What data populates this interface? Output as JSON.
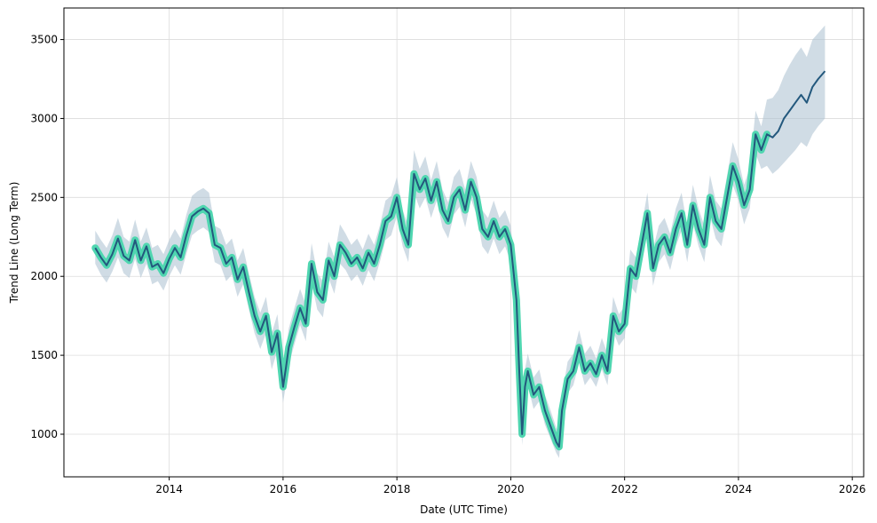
{
  "chart_data": {
    "type": "line",
    "title": "",
    "xlabel": "Date (UTC Time)",
    "ylabel": "Trend Line (Long Term)",
    "xlim": [
      2012.15,
      2026.2
    ],
    "ylim": [
      730,
      3700
    ],
    "grid": true,
    "legend": "none",
    "x_ticks": [
      2014,
      2016,
      2018,
      2020,
      2022,
      2024,
      2026
    ],
    "x_tick_labels": [
      "2014",
      "2016",
      "2018",
      "2020",
      "2022",
      "2024",
      "2026"
    ],
    "y_ticks": [
      1000,
      1500,
      2000,
      2500,
      3000,
      3500
    ],
    "y_tick_labels": [
      "1000",
      "1500",
      "2000",
      "2500",
      "3000",
      "3500"
    ],
    "colors": {
      "line": "#23587d",
      "highlight": "#4fd6b0",
      "band": "#a9bfd0",
      "grid": "#dcdcdc",
      "axis": "#000000"
    },
    "highlight_end": 2024.5,
    "series": [
      {
        "name": "",
        "x": [
          2012.7,
          2012.8,
          2012.9,
          2013.0,
          2013.1,
          2013.2,
          2013.3,
          2013.4,
          2013.5,
          2013.6,
          2013.7,
          2013.8,
          2013.9,
          2014.0,
          2014.1,
          2014.2,
          2014.3,
          2014.4,
          2014.5,
          2014.6,
          2014.7,
          2014.8,
          2014.9,
          2015.0,
          2015.1,
          2015.2,
          2015.3,
          2015.4,
          2015.5,
          2015.6,
          2015.7,
          2015.8,
          2015.9,
          2016.0,
          2016.05,
          2016.1,
          2016.2,
          2016.3,
          2016.4,
          2016.5,
          2016.6,
          2016.7,
          2016.8,
          2016.9,
          2017.0,
          2017.1,
          2017.2,
          2017.3,
          2017.4,
          2017.5,
          2017.6,
          2017.7,
          2017.8,
          2017.9,
          2018.0,
          2018.1,
          2018.2,
          2018.3,
          2018.4,
          2018.5,
          2018.6,
          2018.7,
          2018.8,
          2018.9,
          2019.0,
          2019.1,
          2019.2,
          2019.3,
          2019.4,
          2019.5,
          2019.6,
          2019.7,
          2019.8,
          2019.9,
          2020.0,
          2020.1,
          2020.15,
          2020.2,
          2020.25,
          2020.3,
          2020.4,
          2020.5,
          2020.6,
          2020.7,
          2020.8,
          2020.85,
          2020.9,
          2021.0,
          2021.1,
          2021.2,
          2021.3,
          2021.4,
          2021.5,
          2021.6,
          2021.7,
          2021.8,
          2021.9,
          2022.0,
          2022.1,
          2022.2,
          2022.3,
          2022.4,
          2022.5,
          2022.6,
          2022.7,
          2022.8,
          2022.9,
          2023.0,
          2023.1,
          2023.2,
          2023.3,
          2023.4,
          2023.5,
          2023.6,
          2023.7,
          2023.8,
          2023.9,
          2024.0,
          2024.1,
          2024.2,
          2024.3,
          2024.4,
          2024.5,
          2024.6,
          2024.7,
          2024.8,
          2024.9,
          2025.0,
          2025.1,
          2025.2,
          2025.3,
          2025.4,
          2025.52
        ],
        "values": [
          2180,
          2120,
          2070,
          2140,
          2240,
          2130,
          2100,
          2230,
          2100,
          2190,
          2060,
          2080,
          2020,
          2110,
          2180,
          2120,
          2260,
          2380,
          2410,
          2430,
          2400,
          2200,
          2180,
          2080,
          2120,
          1980,
          2060,
          1900,
          1750,
          1650,
          1750,
          1520,
          1640,
          1300,
          1420,
          1550,
          1680,
          1800,
          1700,
          2080,
          1900,
          1850,
          2100,
          2000,
          2200,
          2150,
          2080,
          2120,
          2050,
          2150,
          2080,
          2200,
          2350,
          2380,
          2500,
          2300,
          2200,
          2650,
          2550,
          2620,
          2480,
          2600,
          2420,
          2350,
          2500,
          2550,
          2420,
          2600,
          2500,
          2300,
          2250,
          2350,
          2250,
          2300,
          2200,
          1850,
          1400,
          1000,
          1300,
          1400,
          1250,
          1300,
          1150,
          1050,
          950,
          920,
          1150,
          1350,
          1400,
          1550,
          1400,
          1450,
          1380,
          1500,
          1400,
          1750,
          1650,
          1700,
          2050,
          2000,
          2200,
          2400,
          2050,
          2200,
          2250,
          2150,
          2300,
          2400,
          2200,
          2450,
          2300,
          2200,
          2500,
          2350,
          2300,
          2500,
          2700,
          2600,
          2450,
          2550,
          2900,
          2800,
          2900,
          2880,
          2920,
          3000,
          3050,
          3100,
          3150,
          3100,
          3200,
          3250,
          3300
        ]
      }
    ],
    "band": {
      "lower": [
        2080,
        2010,
        1960,
        2030,
        2120,
        2020,
        1990,
        2110,
        1990,
        2080,
        1950,
        1970,
        1910,
        2000,
        2070,
        2010,
        2140,
        2260,
        2290,
        2310,
        2280,
        2090,
        2070,
        1970,
        2010,
        1870,
        1950,
        1790,
        1640,
        1540,
        1640,
        1410,
        1530,
        1200,
        1310,
        1440,
        1570,
        1690,
        1590,
        1960,
        1790,
        1740,
        1990,
        1890,
        2080,
        2040,
        1970,
        2010,
        1940,
        2040,
        1970,
        2090,
        2230,
        2260,
        2380,
        2190,
        2090,
        2530,
        2430,
        2500,
        2370,
        2480,
        2310,
        2240,
        2390,
        2440,
        2310,
        2490,
        2390,
        2190,
        2140,
        2240,
        2140,
        2190,
        2090,
        1740,
        1300,
        930,
        1210,
        1310,
        1160,
        1210,
        1060,
        970,
        880,
        850,
        1070,
        1260,
        1310,
        1450,
        1310,
        1360,
        1300,
        1410,
        1310,
        1650,
        1560,
        1610,
        1940,
        1890,
        2090,
        2290,
        1940,
        2090,
        2140,
        2040,
        2190,
        2290,
        2090,
        2330,
        2190,
        2090,
        2380,
        2240,
        2190,
        2380,
        2580,
        2480,
        2330,
        2430,
        2780,
        2680,
        2700,
        2650,
        2680,
        2720,
        2760,
        2800,
        2850,
        2820,
        2900,
        2950,
        3000
      ],
      "upper": [
        2290,
        2230,
        2180,
        2260,
        2370,
        2250,
        2220,
        2360,
        2220,
        2310,
        2180,
        2200,
        2140,
        2230,
        2300,
        2240,
        2390,
        2510,
        2540,
        2560,
        2530,
        2320,
        2300,
        2200,
        2240,
        2100,
        2180,
        2020,
        1870,
        1770,
        1870,
        1640,
        1760,
        1420,
        1540,
        1670,
        1800,
        1920,
        1820,
        2210,
        2020,
        1970,
        2220,
        2120,
        2330,
        2270,
        2200,
        2240,
        2170,
        2270,
        2200,
        2320,
        2480,
        2510,
        2630,
        2420,
        2320,
        2800,
        2680,
        2760,
        2610,
        2730,
        2550,
        2470,
        2630,
        2680,
        2550,
        2730,
        2630,
        2420,
        2370,
        2480,
        2370,
        2420,
        2320,
        1970,
        1520,
        1090,
        1410,
        1510,
        1360,
        1410,
        1250,
        1150,
        1040,
        1010,
        1250,
        1460,
        1510,
        1660,
        1510,
        1560,
        1480,
        1610,
        1510,
        1870,
        1760,
        1810,
        2170,
        2120,
        2320,
        2530,
        2170,
        2320,
        2370,
        2270,
        2430,
        2530,
        2320,
        2580,
        2430,
        2320,
        2640,
        2480,
        2430,
        2640,
        2850,
        2740,
        2580,
        2690,
        3050,
        2950,
        3120,
        3130,
        3180,
        3270,
        3340,
        3400,
        3450,
        3390,
        3500,
        3540,
        3590
      ]
    }
  }
}
